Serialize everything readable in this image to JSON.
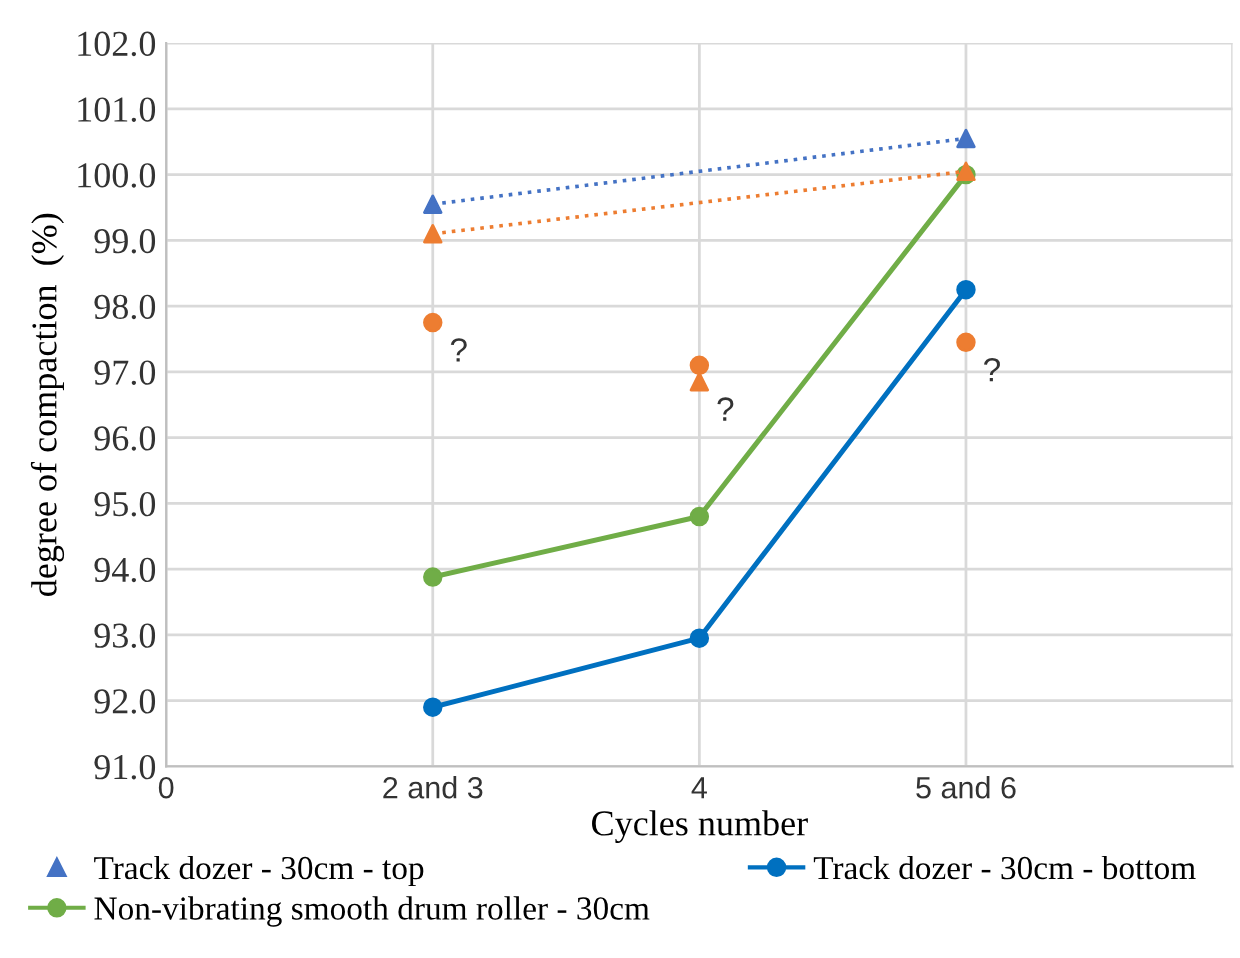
{
  "chart_data": {
    "type": "line",
    "xlabel": "Cycles number",
    "ylabel": "degree of compaction  (%)",
    "categories": [
      "0",
      "2 and 3",
      "4",
      "5 and 6",
      null
    ],
    "ylim": [
      91,
      102
    ],
    "yticks": [
      {
        "value": 91,
        "label": "91.0"
      },
      {
        "value": 92,
        "label": "92.0"
      },
      {
        "value": 93,
        "label": "93.0"
      },
      {
        "value": 94,
        "label": "94.0"
      },
      {
        "value": 95,
        "label": "95.0"
      },
      {
        "value": 96,
        "label": "96.0"
      },
      {
        "value": 97,
        "label": "97.0"
      },
      {
        "value": 98,
        "label": "98.0"
      },
      {
        "value": 99,
        "label": "99.0"
      },
      {
        "value": 100,
        "label": "100.0"
      },
      {
        "value": 101,
        "label": "101.0"
      },
      {
        "value": 102,
        "label": "102.0"
      }
    ],
    "grid": true,
    "legend": "bottom",
    "series": [
      {
        "name": "Track dozer - 30cm - top",
        "type": "scatter",
        "marker": "triangle",
        "color": "#4472c4",
        "values": [
          null,
          99.55,
          null,
          100.55,
          null
        ]
      },
      {
        "line_style": "dotted",
        "marker": "none",
        "color": "#4472c4",
        "values": [
          null,
          99.55,
          null,
          100.55,
          null
        ]
      },
      {
        "name": "Track dozer - 30cm - bottom",
        "marker": "circle",
        "line_style": "solid",
        "color": "#0070c0",
        "values": [
          null,
          91.9,
          92.95,
          98.25,
          null
        ]
      },
      {
        "name": "Non-vibrating smooth drum roller - 30cm",
        "marker": "circle",
        "line_style": "solid",
        "color": "#70ad47",
        "values": [
          null,
          93.88,
          94.8,
          100.0,
          null
        ]
      },
      {
        "type": "scatter",
        "marker": "triangle",
        "color": "#ed7d31",
        "values": [
          null,
          99.1,
          96.85,
          100.05,
          null
        ]
      },
      {
        "line_style": "dotted",
        "marker": "none",
        "color": "#ed7d31",
        "values": [
          null,
          99.1,
          null,
          100.05,
          null
        ]
      },
      {
        "type": "scatter",
        "marker": "circle",
        "color": "#ed7d31",
        "values": [
          null,
          97.75,
          97.1,
          97.45,
          null
        ]
      }
    ],
    "annotations": [
      {
        "text": "?",
        "x": "2 and 3",
        "y": 97.75
      },
      {
        "text": "?",
        "x": "4",
        "y": 96.85
      },
      {
        "text": "?",
        "x": "5 and 6",
        "y": 97.45
      }
    ]
  }
}
